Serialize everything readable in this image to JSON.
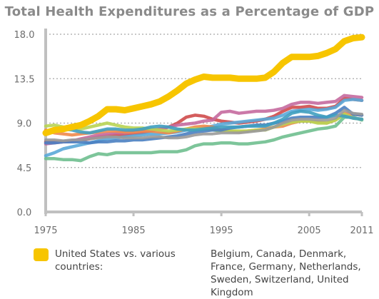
{
  "chart_data": {
    "type": "line",
    "title": "Total Health Expenditures as a Percentage of GDP",
    "xlabel": "",
    "ylabel": "",
    "xlim": [
      1975,
      2011
    ],
    "ylim": [
      0,
      18
    ],
    "x_ticks": [
      "1975",
      "1985",
      "1995",
      "2005",
      "2011"
    ],
    "y_ticks": [
      "0.0",
      "4.5",
      "9.0",
      "13.5",
      "18.0"
    ],
    "grid": "horizontal",
    "legend": {
      "placement": "bottom",
      "prefix": "United States vs. various countries:",
      "countries": "Belgium, Canada, Denmark, France, Germany, Netherlands, Sweden, Switzerland, United Kingdom"
    },
    "x": [
      1975,
      1976,
      1977,
      1978,
      1979,
      1980,
      1981,
      1982,
      1983,
      1984,
      1985,
      1986,
      1987,
      1988,
      1989,
      1990,
      1991,
      1992,
      1993,
      1994,
      1995,
      1996,
      1997,
      1998,
      1999,
      2000,
      2001,
      2002,
      2003,
      2004,
      2005,
      2006,
      2007,
      2008,
      2009,
      2010,
      2011
    ],
    "series": [
      {
        "key": "us",
        "color": "#f7c500",
        "width": 9,
        "values": [
          8.0,
          8.3,
          8.4,
          8.6,
          8.8,
          9.2,
          9.7,
          10.4,
          10.4,
          10.3,
          10.5,
          10.7,
          10.9,
          11.2,
          11.7,
          12.3,
          13.0,
          13.4,
          13.7,
          13.6,
          13.6,
          13.6,
          13.5,
          13.5,
          13.5,
          13.6,
          14.2,
          15.1,
          15.7,
          15.7,
          15.7,
          15.8,
          16.1,
          16.5,
          17.3,
          17.6,
          17.7
        ]
      },
      {
        "key": "c1",
        "color": "#cf4b4b",
        "width": 4.5,
        "values": [
          7.1,
          7.1,
          7.1,
          7.2,
          7.3,
          7.4,
          7.6,
          7.7,
          7.8,
          7.8,
          7.9,
          8.0,
          8.2,
          8.4,
          8.6,
          9.0,
          9.6,
          9.8,
          9.7,
          9.4,
          9.2,
          9.1,
          9.0,
          9.1,
          9.2,
          9.4,
          9.7,
          10.2,
          10.6,
          10.6,
          10.7,
          10.5,
          10.5,
          10.7,
          11.5,
          11.4,
          11.3
        ]
      },
      {
        "key": "c2",
        "color": "#c56a9e",
        "width": 4.5,
        "values": [
          6.9,
          7.0,
          7.1,
          7.2,
          7.4,
          7.6,
          7.8,
          7.9,
          8.0,
          8.0,
          8.1,
          8.2,
          8.3,
          8.4,
          8.6,
          8.8,
          8.9,
          9.0,
          9.2,
          9.3,
          10.1,
          10.2,
          10.0,
          10.1,
          10.2,
          10.2,
          10.3,
          10.5,
          10.9,
          11.1,
          11.1,
          11.0,
          11.1,
          11.2,
          11.8,
          11.7,
          11.6
        ]
      },
      {
        "key": "c3",
        "color": "#5aa9d8",
        "width": 4.5,
        "values": [
          5.7,
          6.0,
          6.4,
          6.6,
          6.8,
          7.0,
          7.2,
          7.4,
          7.5,
          7.6,
          7.7,
          7.8,
          7.9,
          7.9,
          8.0,
          8.1,
          8.3,
          8.4,
          8.5,
          8.7,
          8.9,
          9.0,
          9.1,
          9.2,
          9.3,
          9.4,
          9.5,
          9.8,
          10.2,
          10.3,
          10.4,
          10.3,
          10.4,
          10.6,
          11.3,
          11.4,
          11.3
        ]
      },
      {
        "key": "c4",
        "color": "#6fbf8f",
        "width": 4.5,
        "values": [
          5.4,
          5.4,
          5.3,
          5.3,
          5.2,
          5.6,
          5.9,
          5.8,
          6.0,
          6.0,
          6.0,
          6.0,
          6.0,
          6.1,
          6.1,
          6.1,
          6.3,
          6.7,
          6.9,
          6.9,
          7.0,
          7.0,
          6.9,
          6.9,
          7.0,
          7.1,
          7.3,
          7.6,
          7.8,
          8.0,
          8.2,
          8.4,
          8.5,
          8.7,
          9.6,
          9.6,
          9.3
        ]
      },
      {
        "key": "c5",
        "color": "#f08a4b",
        "width": 4.5,
        "values": [
          8.3,
          8.0,
          7.9,
          7.8,
          7.9,
          8.0,
          8.1,
          8.2,
          8.2,
          8.1,
          8.1,
          8.2,
          8.2,
          8.1,
          8.0,
          8.2,
          8.4,
          8.6,
          8.7,
          8.6,
          8.3,
          8.2,
          8.1,
          8.2,
          8.3,
          8.4,
          8.6,
          8.7,
          9.0,
          9.2,
          9.2,
          9.1,
          9.0,
          9.3,
          10.0,
          9.9,
          9.8
        ]
      },
      {
        "key": "c6",
        "color": "#b8d453",
        "width": 4.5,
        "values": [
          8.7,
          8.8,
          8.6,
          8.5,
          8.4,
          8.6,
          8.8,
          9.0,
          8.8,
          8.6,
          8.5,
          8.5,
          8.4,
          8.3,
          8.2,
          8.3,
          8.4,
          8.4,
          8.4,
          8.3,
          8.2,
          8.2,
          8.2,
          8.2,
          8.3,
          8.3,
          8.6,
          8.9,
          9.1,
          9.2,
          9.2,
          9.0,
          9.0,
          9.3,
          9.9,
          9.5,
          9.4
        ]
      },
      {
        "key": "c7",
        "color": "#4a7fc1",
        "width": 4.5,
        "values": [
          7.0,
          7.0,
          7.1,
          7.1,
          7.1,
          7.0,
          7.1,
          7.1,
          7.2,
          7.2,
          7.3,
          7.3,
          7.4,
          7.5,
          7.6,
          7.7,
          7.9,
          8.1,
          8.2,
          8.3,
          8.3,
          8.5,
          8.6,
          8.7,
          8.8,
          8.8,
          9.0,
          9.2,
          9.5,
          9.6,
          9.6,
          9.6,
          9.6,
          10.0,
          10.6,
          9.9,
          9.8
        ]
      },
      {
        "key": "c8",
        "color": "#3f9fbf",
        "width": 4.5,
        "values": [
          8.0,
          8.2,
          8.4,
          8.3,
          8.1,
          8.0,
          8.2,
          8.4,
          8.4,
          8.3,
          8.3,
          8.4,
          8.6,
          8.7,
          8.6,
          8.4,
          8.3,
          8.3,
          8.4,
          8.5,
          8.6,
          8.6,
          8.6,
          8.7,
          8.7,
          8.7,
          9.0,
          9.4,
          10.0,
          10.2,
          10.1,
          9.8,
          9.6,
          9.8,
          9.7,
          9.5,
          9.4
        ]
      },
      {
        "key": "c9",
        "color": "#9a9a9a",
        "width": 4.0,
        "values": [
          7.3,
          7.3,
          7.2,
          7.3,
          7.3,
          7.4,
          7.5,
          7.6,
          7.6,
          7.5,
          7.5,
          7.5,
          7.6,
          7.6,
          7.5,
          7.5,
          7.6,
          7.8,
          7.9,
          7.9,
          8.0,
          8.0,
          8.0,
          8.1,
          8.2,
          8.3,
          8.6,
          9.0,
          9.3,
          9.4,
          9.4,
          9.3,
          9.3,
          9.5,
          10.3,
          10.0,
          9.9
        ]
      }
    ]
  },
  "colors": {
    "us": "#f7c500",
    "axis": "#c0c0c0",
    "grid": "#a8a8a8",
    "title": "#8a8a8a",
    "tick_text": "#6d6d6d"
  }
}
